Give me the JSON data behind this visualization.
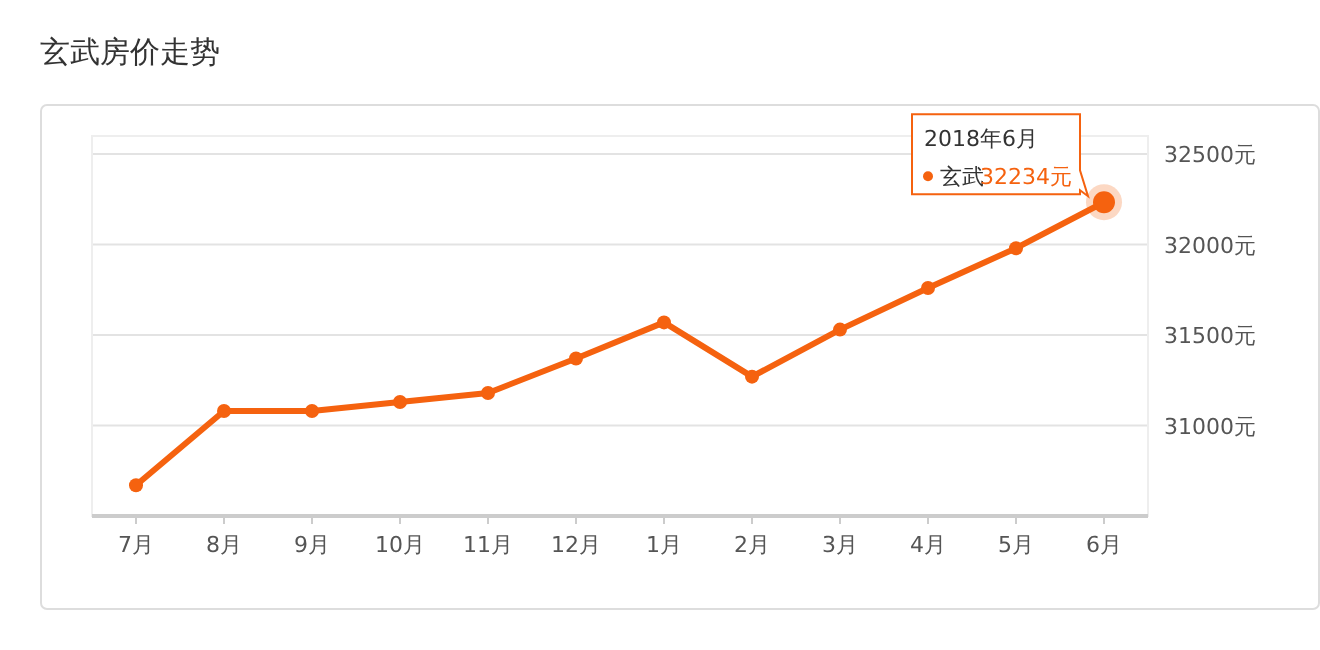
{
  "chart_data": {
    "type": "line",
    "title": "玄武房价走势",
    "categories": [
      "7月",
      "8月",
      "9月",
      "10月",
      "11月",
      "12月",
      "1月",
      "2月",
      "3月",
      "4月",
      "5月",
      "6月"
    ],
    "series": [
      {
        "name": "玄武",
        "color": "#f5620f",
        "values": [
          30670,
          31080,
          31080,
          31130,
          31180,
          31370,
          31570,
          31270,
          31530,
          31760,
          31980,
          32234
        ],
        "value_labels": [
          null,
          null,
          null,
          null,
          null,
          null,
          null,
          null,
          null,
          null,
          null,
          "32234元"
        ]
      }
    ],
    "annotations": [
      "2018年6月"
    ],
    "ylim": [
      30500,
      32600
    ],
    "yticks": [
      {
        "value": 31000,
        "label": "31000元"
      },
      {
        "value": 31500,
        "label": "31500元"
      },
      {
        "value": 32000,
        "label": "32000元"
      },
      {
        "value": 32500,
        "label": "32500元"
      }
    ],
    "grid": "y",
    "marker": "circle",
    "line_style": "solid"
  }
}
